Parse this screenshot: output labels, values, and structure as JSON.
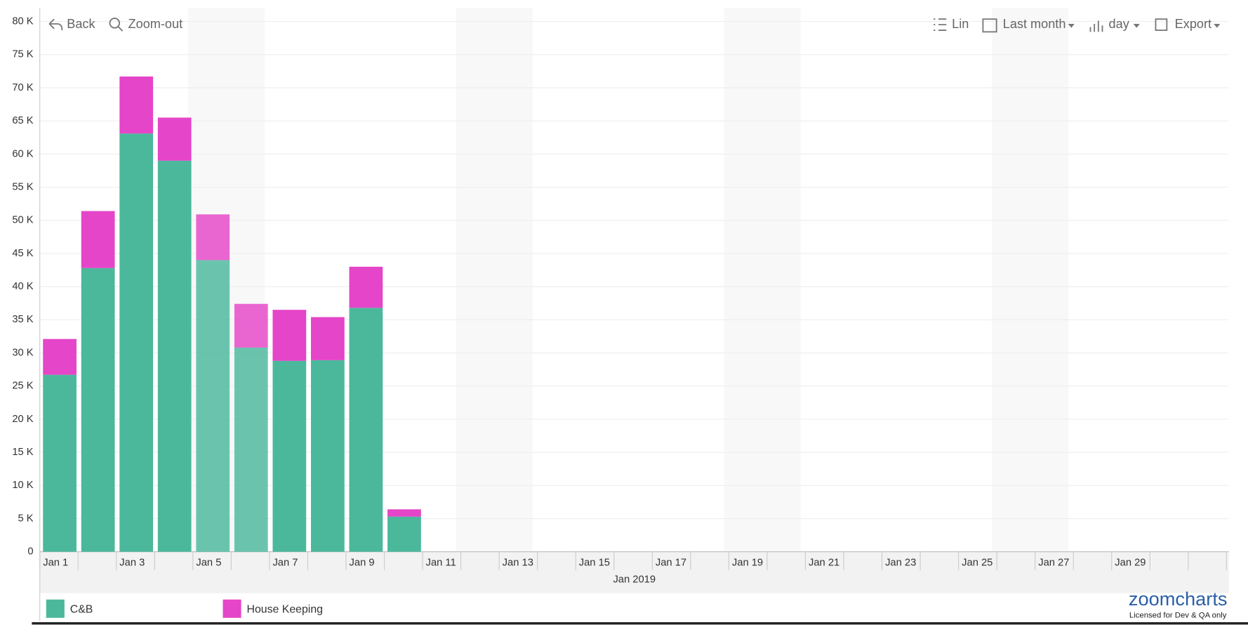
{
  "toolbar": {
    "back": "Back",
    "zoom_out": "Zoom-out",
    "scale": "Lin",
    "period": "Last month",
    "unit": "day",
    "export": "Export"
  },
  "chart_data": {
    "type": "stacked_bar",
    "categories": [
      "Jan 1",
      null,
      "Jan 3",
      null,
      "Jan 5",
      null,
      "Jan 7",
      null,
      "Jan 9",
      null,
      "Jan 11",
      null,
      "Jan 13",
      null,
      "Jan 15",
      null,
      "Jan 17",
      null,
      "Jan 19",
      null,
      "Jan 21",
      null,
      "Jan 23",
      null,
      "Jan 25",
      null,
      "Jan 27",
      null,
      "Jan 29",
      null,
      null
    ],
    "x_axis_label": "Jan 2019",
    "series": [
      {
        "name": "C&B",
        "color": "#4bb89c",
        "values": [
          26700,
          42800,
          63100,
          59000,
          44000,
          30800,
          28800,
          28900,
          36800,
          5300,
          null,
          null,
          null,
          null,
          null,
          null,
          null,
          null,
          null,
          null,
          null,
          null,
          null,
          null,
          null,
          null,
          null,
          null,
          null,
          null,
          null
        ]
      },
      {
        "name": "House Keeping",
        "color": "#e545c8",
        "values": [
          5400,
          8600,
          8600,
          6500,
          6900,
          6600,
          7700,
          6500,
          6200,
          1100,
          null,
          null,
          null,
          null,
          null,
          null,
          null,
          null,
          null,
          null,
          null,
          null,
          null,
          null,
          null,
          null,
          null,
          null,
          null,
          null,
          null
        ]
      }
    ],
    "ylim": [
      0,
      80000
    ],
    "yticks": [
      0,
      {
        "value": 5000,
        "label": "5 K"
      },
      {
        "value": 10000,
        "label": "10 K"
      },
      {
        "value": 15000,
        "label": "15 K"
      },
      {
        "value": 20000,
        "label": "20 K"
      },
      {
        "value": 25000,
        "label": "25 K"
      },
      {
        "value": 30000,
        "label": "30 K"
      },
      {
        "value": 35000,
        "label": "35 K"
      },
      {
        "value": 40000,
        "label": "40 K"
      },
      {
        "value": 45000,
        "label": "45 K"
      },
      {
        "value": 50000,
        "label": "50 K"
      },
      {
        "value": 55000,
        "label": "55 K"
      },
      {
        "value": 60000,
        "label": "60 K"
      },
      {
        "value": 65000,
        "label": "65 K"
      },
      {
        "value": 70000,
        "label": "70 K"
      },
      {
        "value": 75000,
        "label": "75 K"
      },
      {
        "value": 80000,
        "label": "80 K"
      }
    ],
    "grid": true
  },
  "branding": {
    "logo": "zoomcharts",
    "license": "Licensed for Dev & QA only"
  }
}
